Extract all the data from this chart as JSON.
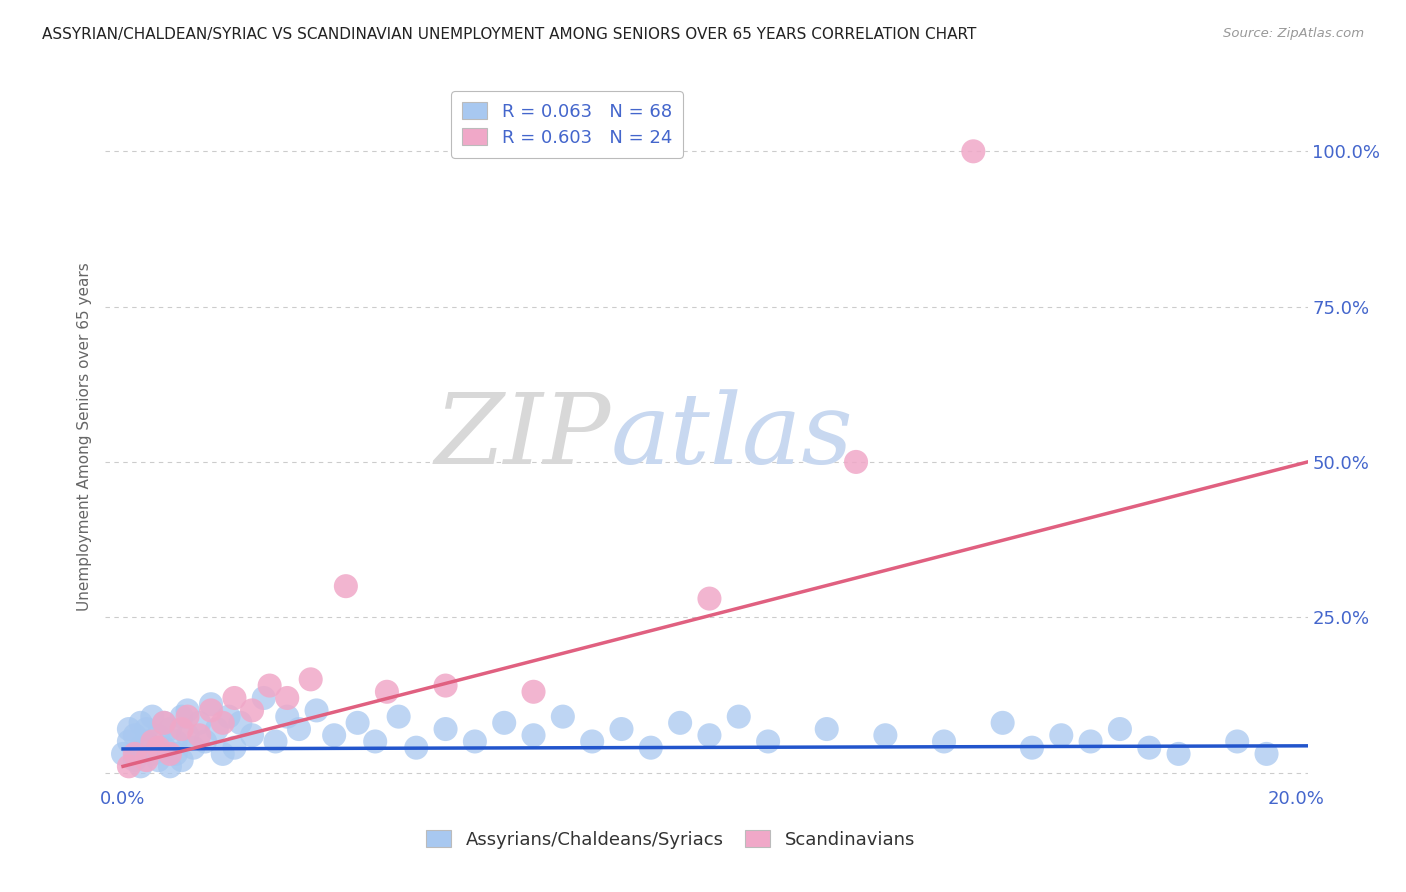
{
  "title": "ASSYRIAN/CHALDEAN/SYRIAC VS SCANDINAVIAN UNEMPLOYMENT AMONG SENIORS OVER 65 YEARS CORRELATION CHART",
  "source": "Source: ZipAtlas.com",
  "ylabel": "Unemployment Among Seniors over 65 years",
  "xlim": [
    -0.003,
    0.202
  ],
  "ylim": [
    -0.02,
    1.1
  ],
  "blue_R": 0.063,
  "blue_N": 68,
  "pink_R": 0.603,
  "pink_N": 24,
  "blue_color": "#a8c8f0",
  "pink_color": "#f0a8c8",
  "blue_line_color": "#2255cc",
  "pink_line_color": "#e06080",
  "blue_scatter_x": [
    0.0,
    0.001,
    0.001,
    0.002,
    0.002,
    0.003,
    0.003,
    0.003,
    0.004,
    0.004,
    0.005,
    0.005,
    0.006,
    0.006,
    0.007,
    0.007,
    0.008,
    0.008,
    0.009,
    0.009,
    0.01,
    0.01,
    0.011,
    0.011,
    0.012,
    0.013,
    0.014,
    0.015,
    0.016,
    0.017,
    0.018,
    0.019,
    0.02,
    0.022,
    0.024,
    0.026,
    0.028,
    0.03,
    0.033,
    0.036,
    0.04,
    0.043,
    0.047,
    0.05,
    0.055,
    0.06,
    0.065,
    0.07,
    0.075,
    0.08,
    0.085,
    0.09,
    0.095,
    0.1,
    0.105,
    0.11,
    0.12,
    0.13,
    0.14,
    0.15,
    0.155,
    0.16,
    0.165,
    0.17,
    0.175,
    0.18,
    0.19,
    0.195
  ],
  "blue_scatter_y": [
    0.03,
    0.05,
    0.07,
    0.02,
    0.06,
    0.04,
    0.08,
    0.01,
    0.05,
    0.07,
    0.03,
    0.09,
    0.02,
    0.06,
    0.04,
    0.08,
    0.01,
    0.07,
    0.05,
    0.03,
    0.09,
    0.02,
    0.06,
    0.1,
    0.04,
    0.08,
    0.05,
    0.11,
    0.07,
    0.03,
    0.09,
    0.04,
    0.08,
    0.06,
    0.12,
    0.05,
    0.09,
    0.07,
    0.1,
    0.06,
    0.08,
    0.05,
    0.09,
    0.04,
    0.07,
    0.05,
    0.08,
    0.06,
    0.09,
    0.05,
    0.07,
    0.04,
    0.08,
    0.06,
    0.09,
    0.05,
    0.07,
    0.06,
    0.05,
    0.08,
    0.04,
    0.06,
    0.05,
    0.07,
    0.04,
    0.03,
    0.05,
    0.03
  ],
  "pink_scatter_x": [
    0.001,
    0.002,
    0.004,
    0.005,
    0.006,
    0.007,
    0.008,
    0.01,
    0.011,
    0.013,
    0.015,
    0.017,
    0.019,
    0.022,
    0.025,
    0.028,
    0.032,
    0.038,
    0.045,
    0.055,
    0.07,
    0.1,
    0.125,
    0.145
  ],
  "pink_scatter_y": [
    0.01,
    0.03,
    0.02,
    0.05,
    0.04,
    0.08,
    0.03,
    0.07,
    0.09,
    0.06,
    0.1,
    0.08,
    0.12,
    0.1,
    0.14,
    0.12,
    0.15,
    0.3,
    0.13,
    0.14,
    0.13,
    0.28,
    0.5,
    1.0
  ],
  "blue_trend_x": [
    0.0,
    0.202
  ],
  "blue_trend_y": [
    0.038,
    0.043
  ],
  "pink_trend_x": [
    0.0,
    0.202
  ],
  "pink_trend_y": [
    0.01,
    0.5
  ],
  "watermark_zip": "ZIP",
  "watermark_atlas": "atlas",
  "watermark_zip_color": "#d8d8d8",
  "watermark_atlas_color": "#c8d8f0",
  "background_color": "#ffffff",
  "grid_color": "#cccccc",
  "tick_color": "#4466cc",
  "legend_label_blue": "Assyrians/Chaldeans/Syriacs",
  "legend_label_pink": "Scandinavians",
  "axis_label_color": "#666666"
}
